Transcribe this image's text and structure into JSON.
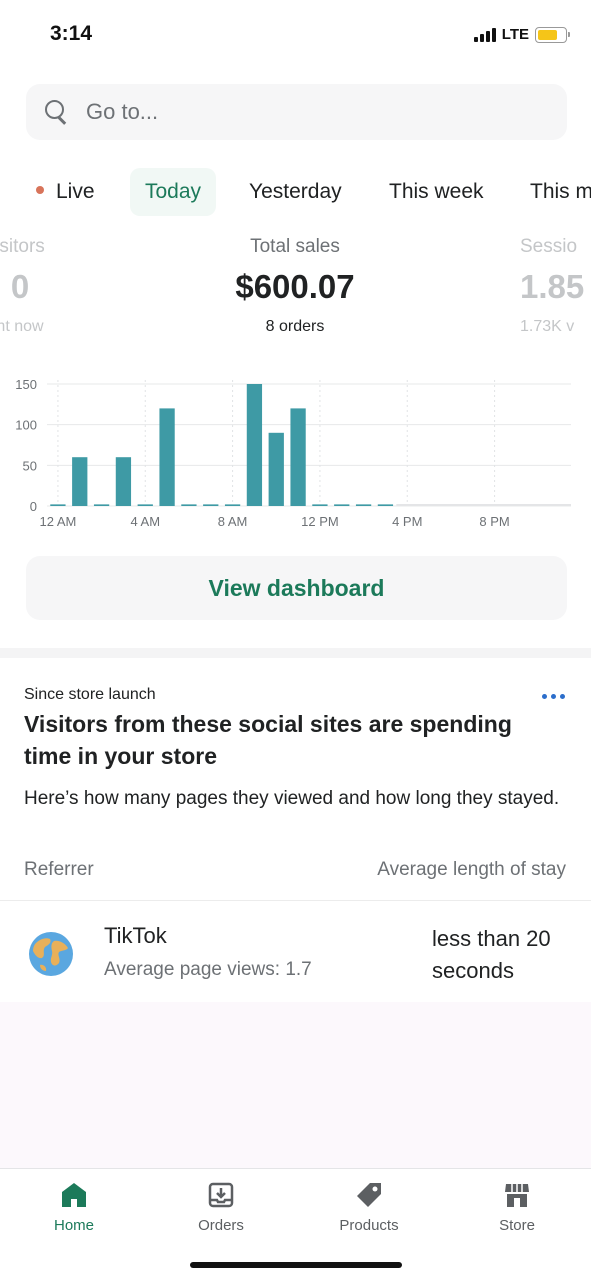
{
  "status_bar": {
    "time": "3:14",
    "network": "LTE",
    "battery_level": 0.74
  },
  "search": {
    "placeholder": "Go to..."
  },
  "tabs": [
    {
      "label": "Live"
    },
    {
      "label": "Today",
      "selected": true
    },
    {
      "label": "Yesterday"
    },
    {
      "label": "This week"
    },
    {
      "label": "This m"
    }
  ],
  "metrics": {
    "left": {
      "label": "isitors",
      "value": "0",
      "sub": "ht now"
    },
    "center": {
      "label": "Total sales",
      "value": "$600.07",
      "sub": "8 orders"
    },
    "right": {
      "label": "Sessio",
      "value": "1.85",
      "sub": "1.73K v"
    }
  },
  "chart_data": {
    "type": "bar",
    "ylim": [
      0,
      150
    ],
    "y_ticks": [
      0,
      50,
      100,
      150
    ],
    "x_tick_labels": [
      "12 AM",
      "4 AM",
      "8 AM",
      "12 PM",
      "4 PM",
      "8 PM"
    ],
    "hours": [
      0,
      1,
      2,
      3,
      4,
      5,
      6,
      7,
      8,
      9,
      10,
      11,
      12,
      13,
      14,
      15,
      16,
      17,
      18,
      19,
      20,
      21,
      22,
      23
    ],
    "values": [
      2,
      60,
      2,
      60,
      2,
      120,
      2,
      2,
      2,
      150,
      90,
      120,
      2,
      2,
      2,
      2,
      null,
      null,
      null,
      null,
      null,
      null,
      null,
      null
    ],
    "bar_color": "#3e9aa5",
    "grid": true
  },
  "actions": {
    "view_dashboard": "View dashboard"
  },
  "card": {
    "overline": "Since store launch",
    "title": "Visitors from these social sites are spending time in your store",
    "description": "Here’s how many pages they viewed and how long they stayed.",
    "col_left": "Referrer",
    "col_right": "Average length of stay",
    "rows": [
      {
        "icon": "globe-icon",
        "name": "TikTok",
        "sub": "Average page views: 1.7",
        "stay": "less than 20 seconds"
      }
    ]
  },
  "bottom_nav": [
    {
      "label": "Home",
      "icon": "home-icon",
      "active": true
    },
    {
      "label": "Orders",
      "icon": "orders-icon"
    },
    {
      "label": "Products",
      "icon": "tag-icon"
    },
    {
      "label": "Store",
      "icon": "store-icon"
    }
  ],
  "colors": {
    "accent": "#1c7a5a",
    "live_dot": "#d8745a",
    "link": "#2c6ecb"
  }
}
